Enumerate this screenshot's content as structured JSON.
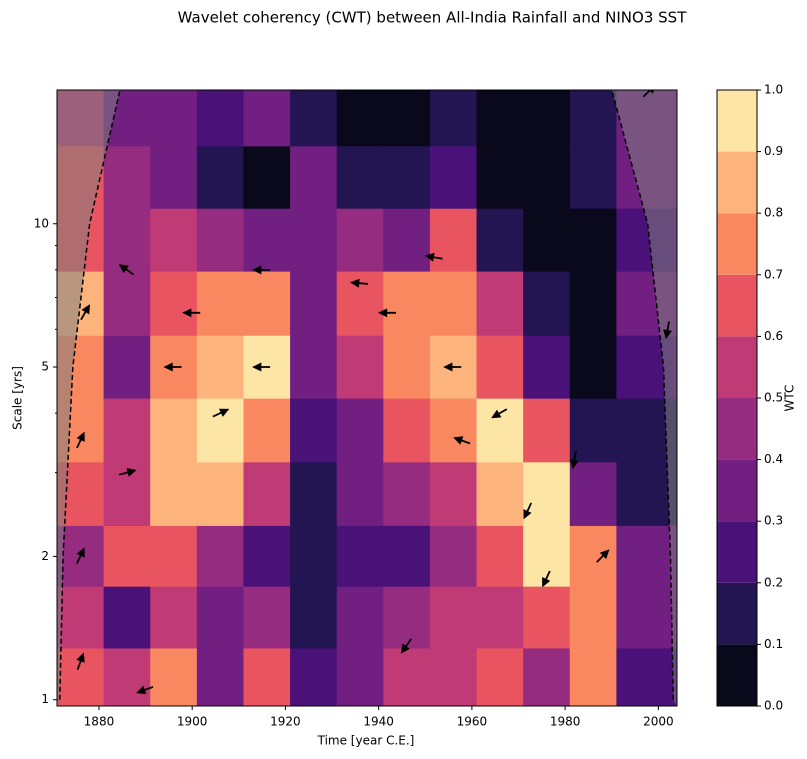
{
  "chart_data": {
    "type": "wavelet-coherence",
    "title": "Wavelet coherency (CWT) between All-India Rainfall and NINO3 SST",
    "x_label": "Time [year C.E.]",
    "y_label": "Scale [yrs]",
    "colorbar_label": "WTC",
    "xlim": [
      1871,
      2004
    ],
    "xticks": [
      1880,
      1900,
      1920,
      1940,
      1960,
      1980,
      2000
    ],
    "ylim": [
      0.97,
      19.1
    ],
    "yscale": "log",
    "yticks": [
      1,
      2,
      5,
      10
    ],
    "yminorticks": [
      3,
      4,
      6,
      7,
      8,
      9
    ],
    "x": [
      1876,
      1886,
      1896,
      1906,
      1916,
      1926,
      1936,
      1946,
      1956,
      1966,
      1976,
      1986,
      1996
    ],
    "scales": [
      1.1,
      1.5,
      2,
      2.7,
      3.7,
      5,
      6.8,
      9.3,
      12.5,
      17
    ],
    "coherence": [
      [
        0.6,
        0.5,
        0.7,
        0.3,
        0.6,
        0.2,
        0.3,
        0.5,
        0.5,
        0.6,
        0.4,
        0.7,
        0.2
      ],
      [
        0.5,
        0.2,
        0.5,
        0.3,
        0.4,
        0.15,
        0.3,
        0.4,
        0.5,
        0.5,
        0.6,
        0.7,
        0.3
      ],
      [
        0.4,
        0.6,
        0.6,
        0.45,
        0.2,
        0.1,
        0.2,
        0.2,
        0.4,
        0.6,
        0.9,
        0.7,
        0.3
      ],
      [
        0.6,
        0.5,
        0.8,
        0.8,
        0.5,
        0.15,
        0.3,
        0.4,
        0.5,
        0.85,
        0.9,
        0.3,
        0.15
      ],
      [
        0.7,
        0.5,
        0.8,
        0.95,
        0.75,
        0.2,
        0.35,
        0.6,
        0.7,
        0.9,
        0.6,
        0.1,
        0.1
      ],
      [
        0.75,
        0.35,
        0.7,
        0.85,
        0.9,
        0.3,
        0.5,
        0.75,
        0.8,
        0.6,
        0.2,
        0.05,
        0.2
      ],
      [
        0.8,
        0.4,
        0.6,
        0.75,
        0.7,
        0.3,
        0.6,
        0.7,
        0.75,
        0.5,
        0.1,
        0.05,
        0.3
      ],
      [
        0.65,
        0.4,
        0.5,
        0.45,
        0.35,
        0.3,
        0.4,
        0.35,
        0.6,
        0.15,
        0.05,
        0.05,
        0.2
      ],
      [
        0.6,
        0.4,
        0.3,
        0.1,
        0.05,
        0.3,
        0.15,
        0.1,
        0.2,
        0.05,
        0.05,
        0.15,
        0.3
      ],
      [
        0.5,
        0.35,
        0.3,
        0.25,
        0.3,
        0.15,
        0.05,
        0.05,
        0.1,
        0.05,
        0.05,
        0.1,
        0.3
      ]
    ],
    "cticks": [
      {
        "value": 0,
        "label": "0.0"
      },
      0.1,
      0.2,
      0.3,
      0.4,
      0.5,
      0.6,
      0.7,
      0.8,
      0.9,
      {
        "value": 1,
        "label": "1.0"
      }
    ],
    "colors": [
      "#0a081b",
      "#231452",
      "#4a1179",
      "#711f81",
      "#962c80",
      "#c03a76",
      "#e8545f",
      "#f98861",
      "#fdb47c",
      "#fde5a6"
    ],
    "coi": {
      "left_x": [
        1871.6,
        1872.3,
        1874.4,
        1878,
        1884.5
      ],
      "right_x": [
        2003.2,
        2002.6,
        2001.1,
        1997.7,
        1990
      ],
      "scales": [
        1,
        2,
        5,
        10,
        19.1
      ]
    },
    "arrows": {
      "x": [
        1876,
        1876,
        1876,
        1877,
        1886,
        1886,
        1896,
        1900,
        1906,
        1915,
        1915,
        1936,
        1942,
        1952,
        1956,
        1958,
        1966,
        1972,
        1976,
        1982,
        1988,
        1998,
        1890,
        1946,
        2002
      ],
      "scales": [
        1.2,
        2,
        3.5,
        6.5,
        3,
        8,
        5,
        6.5,
        4,
        8,
        5,
        7.5,
        6.5,
        8.5,
        5,
        3.5,
        4,
        2.5,
        1.8,
        3.2,
        2,
        19,
        1.05,
        1.3,
        6
      ],
      "angles": [
        70,
        65,
        65,
        60,
        15,
        145,
        180,
        180,
        25,
        180,
        180,
        175,
        180,
        170,
        180,
        160,
        210,
        245,
        245,
        260,
        45,
        45,
        200,
        235,
        260
      ]
    },
    "arrow_color": "#000000",
    "mask_color": "#808080"
  }
}
